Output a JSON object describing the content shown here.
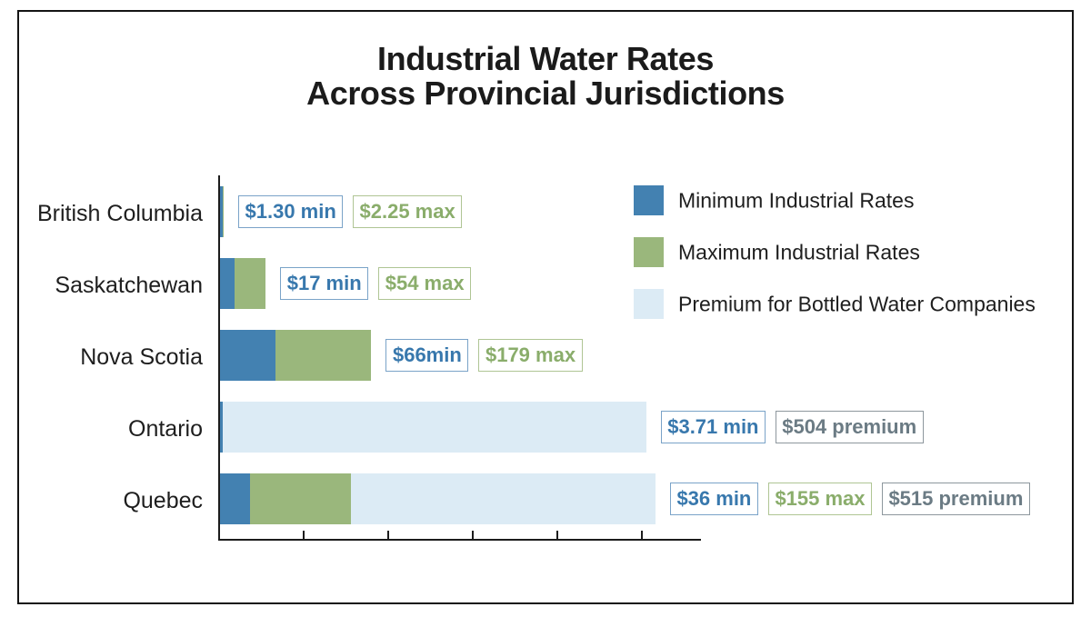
{
  "title": {
    "line1": "Industrial Water Rates",
    "line2": "Across Provincial Jurisdictions"
  },
  "colors": {
    "min_bar": "#4381b1",
    "max_bar": "#9ab77c",
    "premium_bar": "#dcebf5",
    "min_text": "#3878ad",
    "min_border": "#7aa3c8",
    "max_text": "#8aad6b",
    "max_border": "#afc594",
    "premium_text": "#6b7b84",
    "premium_border": "#8d979d",
    "axis": "#1c1c1c",
    "label_text": "#1e1e1e",
    "title_text": "#1b1b1b"
  },
  "legend": {
    "items": [
      {
        "label": "Minimum Industrial Rates",
        "color_key": "min_bar"
      },
      {
        "label": "Maximum Industrial Rates",
        "color_key": "max_bar"
      },
      {
        "label": "Premium for Bottled Water Companies",
        "color_key": "premium_bar"
      }
    ]
  },
  "chart_data": {
    "type": "bar",
    "orientation": "horizontal",
    "stacked": true,
    "title": "Industrial Water Rates Across Provincial Jurisdictions",
    "xlabel": "",
    "ylabel": "",
    "xlim": [
      0,
      570
    ],
    "x_ticks": [
      100,
      200,
      300,
      400,
      500
    ],
    "grid": false,
    "legend_position": "upper right",
    "categories": [
      "British Columbia",
      "Saskatchewan",
      "Nova Scotia",
      "Ontario",
      "Quebec"
    ],
    "series": [
      {
        "name": "Minimum Industrial Rates",
        "values": [
          1.3,
          17,
          66,
          3.71,
          36
        ]
      },
      {
        "name": "Maximum Industrial Rates",
        "values": [
          2.25,
          54,
          179,
          null,
          155
        ]
      },
      {
        "name": "Premium for Bottled Water Companies",
        "values": [
          null,
          null,
          null,
          504,
          515
        ]
      }
    ],
    "value_boxes": [
      [
        {
          "text": "$1.30 min",
          "kind": "min"
        },
        {
          "text": "$2.25 max",
          "kind": "max"
        }
      ],
      [
        {
          "text": "$17 min",
          "kind": "min"
        },
        {
          "text": "$54 max",
          "kind": "max"
        }
      ],
      [
        {
          "text": "$66min",
          "kind": "min"
        },
        {
          "text": "$179 max",
          "kind": "max"
        }
      ],
      [
        {
          "text": "$3.71 min",
          "kind": "min"
        },
        {
          "text": "$504 premium",
          "kind": "premium"
        }
      ],
      [
        {
          "text": "$36 min",
          "kind": "min"
        },
        {
          "text": "$155 max",
          "kind": "max"
        },
        {
          "text": "$515 premium",
          "kind": "premium"
        }
      ]
    ]
  }
}
